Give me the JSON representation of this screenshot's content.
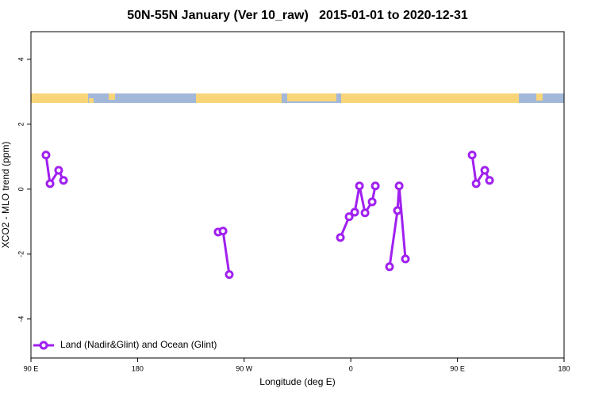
{
  "chart_data": {
    "type": "line",
    "title": "50N-55N January (Ver 10_raw)   2015-01-01 to 2020-12-31",
    "x_label": "Longitude (deg E)",
    "y_label": "XCO2 - MLO trend (ppm)",
    "xlim": [
      90,
      540
    ],
    "xticks": [
      {
        "value": 90,
        "label": "90 E"
      },
      180,
      {
        "value": 270,
        "label": "90 W"
      },
      {
        "value": 360,
        "label": "0"
      },
      {
        "value": 450,
        "label": "90 E"
      },
      {
        "value": 540,
        "label": "180"
      }
    ],
    "ylim": [
      -5.2,
      4.85
    ],
    "yticks": [
      -4,
      -2,
      0,
      2,
      4
    ],
    "legend": "bottom-left",
    "series": [
      {
        "name": "Land (Nadir&Glint) and Ocean (Glint)",
        "color": "#a020f0",
        "x": [
          102.7,
          106.1,
          113.4,
          117.5,
          null,
          248,
          252.1,
          257.4,
          null,
          351.2,
          358.6,
          363.3,
          367.3,
          372.0,
          378.0,
          380.7,
          null,
          392.7,
          399.4,
          400.8,
          406.1,
          null,
          462.4,
          465.8,
          473.1,
          477.1
        ],
        "values": [
          1.05,
          0.17,
          0.58,
          0.27,
          null,
          -1.32,
          -1.29,
          -2.63,
          null,
          -1.49,
          -0.85,
          -0.71,
          0.1,
          -0.73,
          -0.39,
          0.1,
          null,
          -2.39,
          -0.66,
          0.1,
          -2.15,
          null,
          1.05,
          0.17,
          0.58,
          0.27
        ]
      }
    ]
  }
}
